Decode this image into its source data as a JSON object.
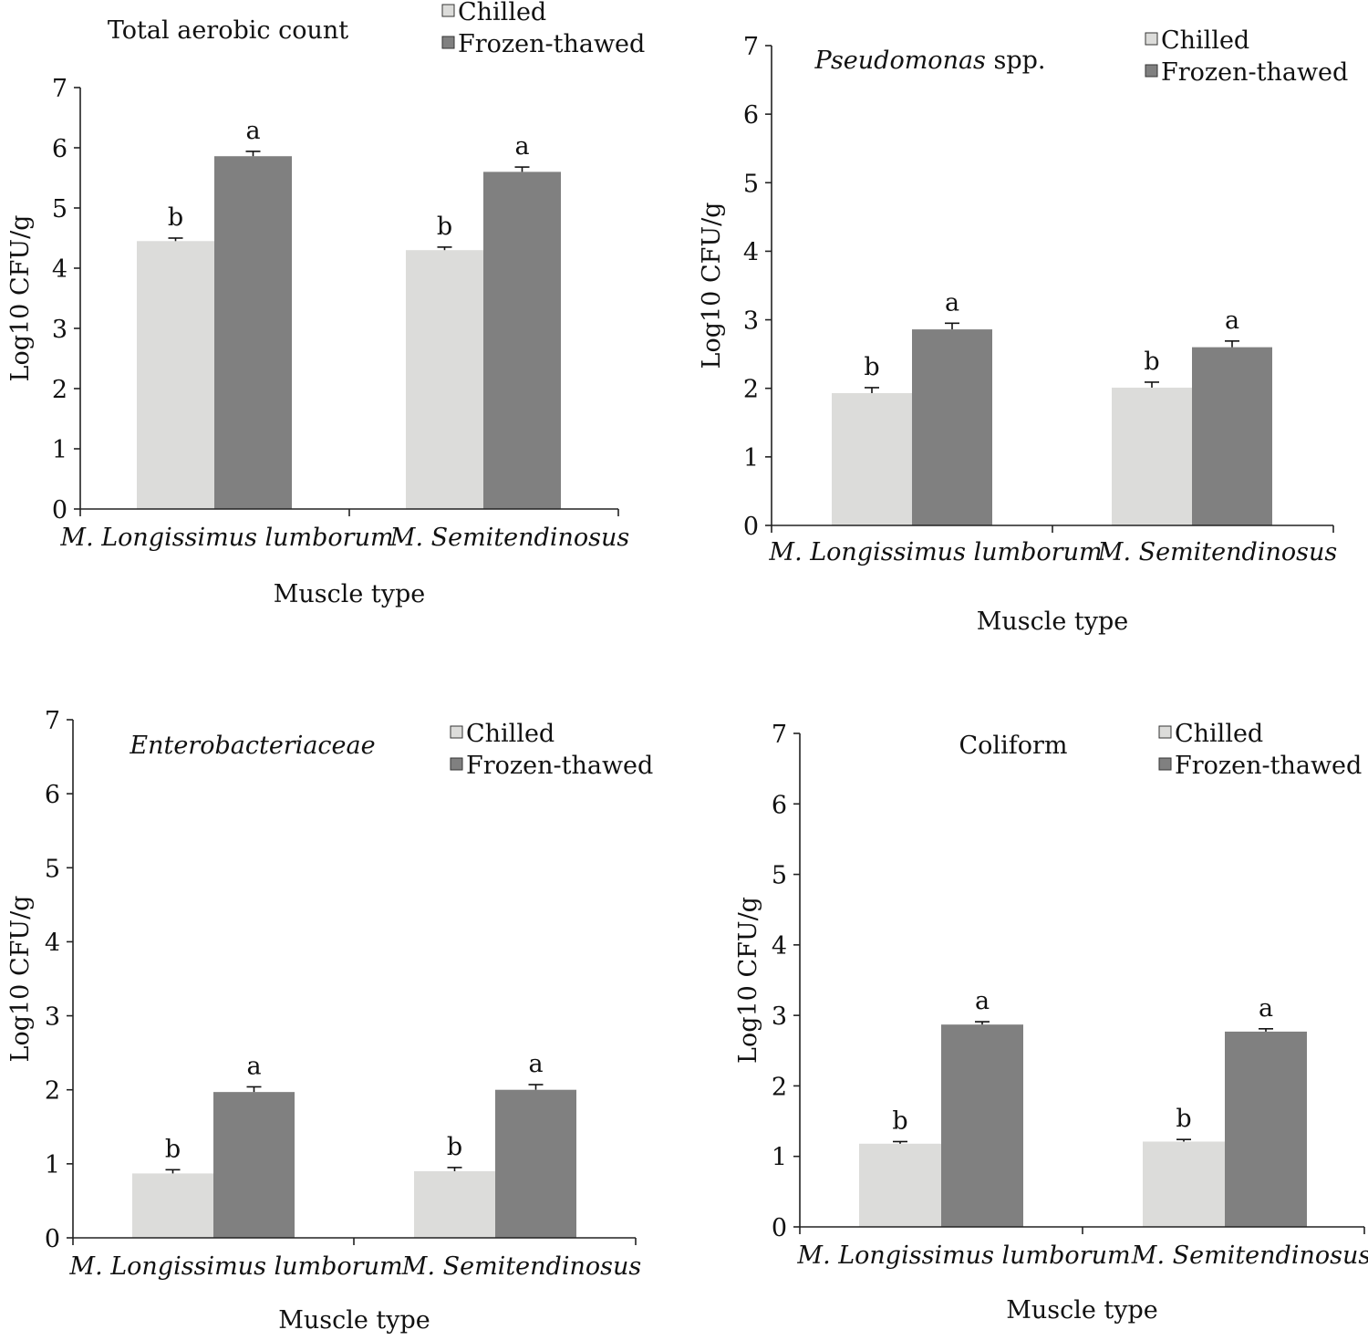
{
  "figure": {
    "colors": {
      "chilled": "#dcdcda",
      "frozen": "#808080",
      "axis": "#222222",
      "text": "#111111"
    }
  },
  "chart_data": [
    {
      "type": "bar",
      "title": "Total aerobic count",
      "title_italic": false,
      "xlabel": "Muscle type",
      "ylabel": "Log10 CFU/g",
      "categories": [
        "M. Longissimus lumborum",
        "M. Semitendinosus"
      ],
      "series": [
        {
          "name": "Chilled",
          "values": [
            4.45,
            4.3
          ],
          "errors": [
            0.05,
            0.05
          ],
          "letters": [
            "b",
            "b"
          ]
        },
        {
          "name": "Frozen-thawed",
          "values": [
            5.86,
            5.6
          ],
          "errors": [
            0.08,
            0.08
          ],
          "letters": [
            "a",
            "a"
          ]
        }
      ],
      "ylim": [
        0,
        7
      ],
      "yticks": [
        "0",
        "1",
        "2",
        "3",
        "4",
        "5",
        "6",
        "7"
      ],
      "grid": false,
      "legend": "top-right"
    },
    {
      "type": "bar",
      "title": "Pseudomonas spp.",
      "title_italic_part": "Pseudomonas",
      "title_plain_part": " spp.",
      "xlabel": "Muscle type",
      "ylabel": "Log10 CFU/g",
      "categories": [
        "M. Longissimus lumborum",
        "M. Semitendinosus"
      ],
      "series": [
        {
          "name": "Chilled",
          "values": [
            1.93,
            2.01
          ],
          "errors": [
            0.08,
            0.08
          ],
          "letters": [
            "b",
            "b"
          ]
        },
        {
          "name": "Frozen-thawed",
          "values": [
            2.86,
            2.6
          ],
          "errors": [
            0.09,
            0.09
          ],
          "letters": [
            "a",
            "a"
          ]
        }
      ],
      "ylim": [
        0,
        7
      ],
      "yticks": [
        "0",
        "1",
        "2",
        "3",
        "4",
        "5",
        "6",
        "7"
      ],
      "grid": false,
      "legend": "top-right"
    },
    {
      "type": "bar",
      "title": "Enterobacteriaceae",
      "title_italic": true,
      "xlabel": "Muscle type",
      "ylabel": "Log10 CFU/g",
      "categories": [
        "M. Longissimus lumborum",
        "M. Semitendinosus"
      ],
      "series": [
        {
          "name": "Chilled",
          "values": [
            0.87,
            0.9
          ],
          "errors": [
            0.05,
            0.05
          ],
          "letters": [
            "b",
            "b"
          ]
        },
        {
          "name": "Frozen-thawed",
          "values": [
            1.97,
            2.0
          ],
          "errors": [
            0.07,
            0.07
          ],
          "letters": [
            "a",
            "a"
          ]
        }
      ],
      "ylim": [
        0,
        7
      ],
      "yticks": [
        "0",
        "1",
        "2",
        "3",
        "4",
        "5",
        "6",
        "7"
      ],
      "grid": false,
      "legend": "top-right"
    },
    {
      "type": "bar",
      "title": "Coliform",
      "title_italic": false,
      "xlabel": "Muscle type",
      "ylabel": "Log10 CFU/g",
      "categories": [
        "M. Longissimus lumborum",
        "M. Semitendinosus"
      ],
      "series": [
        {
          "name": "Chilled",
          "values": [
            1.18,
            1.21
          ],
          "errors": [
            0.03,
            0.03
          ],
          "letters": [
            "b",
            "b"
          ]
        },
        {
          "name": "Frozen-thawed",
          "values": [
            2.87,
            2.77
          ],
          "errors": [
            0.04,
            0.04
          ],
          "letters": [
            "a",
            "a"
          ]
        }
      ],
      "ylim": [
        0,
        7
      ],
      "yticks": [
        "0",
        "1",
        "2",
        "3",
        "4",
        "5",
        "6",
        "7"
      ],
      "grid": false,
      "legend": "top-right"
    }
  ]
}
